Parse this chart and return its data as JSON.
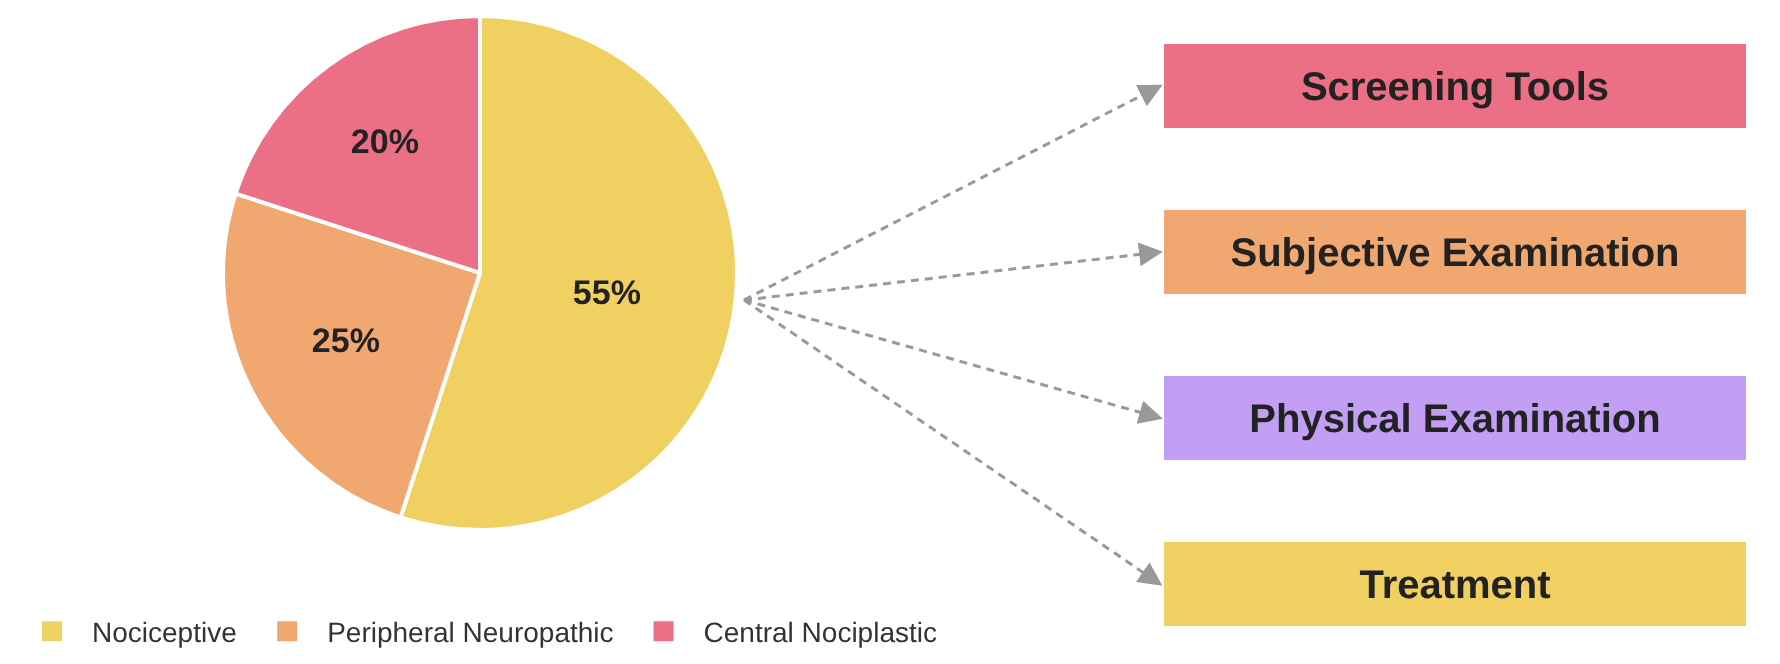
{
  "chart_data": [
    {
      "type": "pie",
      "categories": [
        "Nociceptive",
        "Peripheral Neuropathic",
        "Central Nociplastic"
      ],
      "values": [
        55,
        25,
        20
      ],
      "colors": [
        "#f0d060",
        "#f0a870",
        "#ec7085"
      ],
      "value_labels": [
        "55%",
        "25%",
        "20%"
      ],
      "legend": "bottom"
    },
    {
      "type": "other",
      "categories": [
        "Screening Tools",
        "Subjective Examination",
        "Physical Examination",
        "Treatment"
      ],
      "colors": [
        "#ec7085",
        "#f0a870",
        "#c39ef5",
        "#f0d060"
      ]
    }
  ]
}
